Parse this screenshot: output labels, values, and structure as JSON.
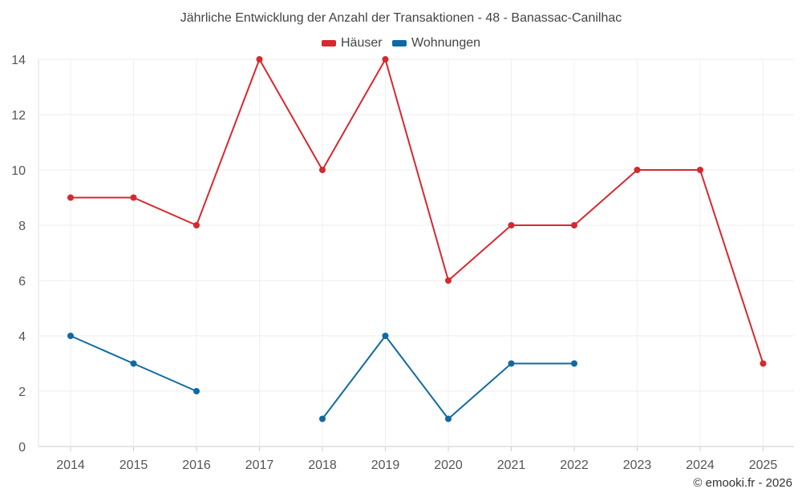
{
  "chart_data": {
    "type": "line",
    "title": "Jährliche Entwicklung der Anzahl der Transaktionen - 48 - Banassac-Canilhac",
    "categories": [
      "2014",
      "2015",
      "2016",
      "2017",
      "2018",
      "2019",
      "2020",
      "2021",
      "2022",
      "2023",
      "2024",
      "2025"
    ],
    "series": [
      {
        "name": "Häuser",
        "color": "#d7282f",
        "values": [
          9,
          9,
          8,
          14,
          10,
          14,
          6,
          8,
          8,
          10,
          10,
          3
        ]
      },
      {
        "name": "Wohnungen",
        "color": "#0f6aa3",
        "values": [
          4,
          3,
          2,
          null,
          1,
          4,
          1,
          3,
          3,
          null,
          null,
          null
        ]
      }
    ],
    "ylim": [
      0,
      14
    ],
    "yticks": [
      0,
      2,
      4,
      6,
      8,
      10,
      12,
      14
    ],
    "xlabel": "",
    "ylabel": "",
    "grid": true,
    "legend": "top-center"
  },
  "footer": {
    "credit": "© emooki.fr - 2026"
  }
}
